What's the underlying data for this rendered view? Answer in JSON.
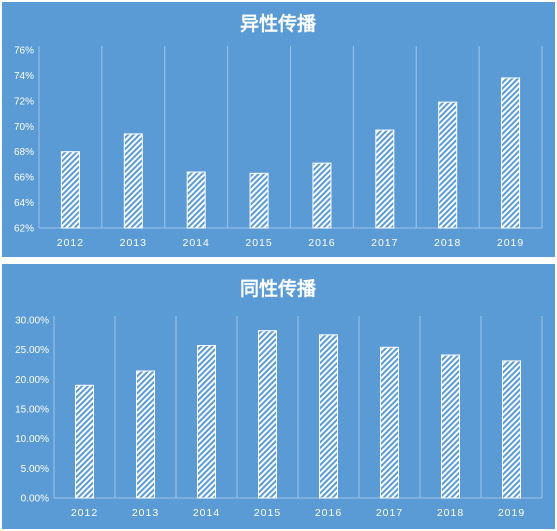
{
  "colors": {
    "background": "#5b9bd5",
    "bar": "#ffffff",
    "grid": "#9fc3e6",
    "text": "#ffffff"
  },
  "chart_data": [
    {
      "type": "bar",
      "title": "异性传播",
      "categories": [
        "2012",
        "2013",
        "2014",
        "2015",
        "2016",
        "2017",
        "2018",
        "2019"
      ],
      "values": [
        68.0,
        69.4,
        66.4,
        66.3,
        67.1,
        69.7,
        71.9,
        73.8
      ],
      "ylim": [
        62,
        76
      ],
      "yticks": [
        "62%",
        "64%",
        "66%",
        "68%",
        "70%",
        "72%",
        "74%",
        "76%"
      ],
      "grid": "vertical",
      "bar_fill": "diagonal-hatch"
    },
    {
      "type": "bar",
      "title": "同性传播",
      "categories": [
        "2012",
        "2013",
        "2014",
        "2015",
        "2016",
        "2017",
        "2018",
        "2019"
      ],
      "values": [
        19.0,
        21.4,
        25.7,
        28.2,
        27.5,
        25.4,
        24.1,
        23.1
      ],
      "ylim": [
        0,
        30
      ],
      "yticks": [
        "0.00%",
        "5.00%",
        "10.00%",
        "15.00%",
        "20.00%",
        "25.00%",
        "30.00%"
      ],
      "grid": "vertical",
      "bar_fill": "diagonal-hatch"
    }
  ]
}
